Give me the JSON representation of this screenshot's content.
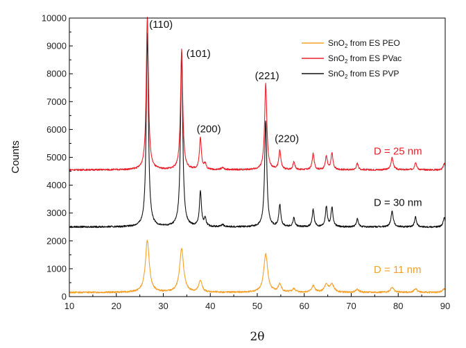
{
  "chart_data": {
    "type": "line",
    "xlabel": "2θ",
    "ylabel": "Counts",
    "xlim": [
      10,
      90
    ],
    "ylim": [
      0,
      10000
    ],
    "x_ticks": [
      "10",
      "20",
      "30",
      "40",
      "50",
      "60",
      "70",
      "80",
      "90"
    ],
    "y_ticks": [
      "0",
      "1000",
      "2000",
      "3000",
      "4000",
      "5000",
      "6000",
      "7000",
      "8000",
      "9000",
      "10000"
    ],
    "grid": false,
    "legend_position": "top-right",
    "series": [
      {
        "name": "SnO2 from ES PEO",
        "legend_main": "SnO",
        "legend_sub": "2",
        "legend_rest": " from ES PEO",
        "color": "#f5a02a",
        "baseline": 150,
        "peaks": [
          [
            26.6,
            1850,
            0.5
          ],
          [
            33.9,
            1570,
            0.5
          ],
          [
            37.9,
            420,
            0.4
          ],
          [
            51.8,
            1380,
            0.5
          ],
          [
            54.8,
            280,
            0.4
          ],
          [
            57.8,
            120,
            0.4
          ],
          [
            61.9,
            230,
            0.4
          ],
          [
            64.7,
            260,
            0.5
          ],
          [
            65.9,
            270,
            0.5
          ],
          [
            71.3,
            110,
            0.4
          ],
          [
            78.7,
            190,
            0.4
          ],
          [
            83.7,
            130,
            0.4
          ],
          [
            89.8,
            130,
            0.4
          ]
        ],
        "size_label": "D = 11 nm"
      },
      {
        "name": "SnO2 from ES PVac",
        "legend_main": "SnO",
        "legend_sub": "2",
        "legend_rest": " from ES PVac",
        "color": "#e8202a",
        "baseline": 4550,
        "peaks": [
          [
            26.6,
            5500,
            0.28
          ],
          [
            33.9,
            4300,
            0.28
          ],
          [
            37.9,
            1130,
            0.25
          ],
          [
            38.9,
            200,
            0.25
          ],
          [
            42.6,
            80,
            0.3
          ],
          [
            51.8,
            3080,
            0.28
          ],
          [
            54.8,
            700,
            0.25
          ],
          [
            57.8,
            280,
            0.25
          ],
          [
            61.9,
            580,
            0.25
          ],
          [
            64.7,
            480,
            0.25
          ],
          [
            65.9,
            600,
            0.25
          ],
          [
            71.3,
            230,
            0.25
          ],
          [
            78.7,
            430,
            0.3
          ],
          [
            83.7,
            280,
            0.25
          ],
          [
            89.8,
            230,
            0.25
          ]
        ],
        "size_label": "D = 25 nm"
      },
      {
        "name": "SnO2 from ES PVP",
        "legend_main": "SnO",
        "legend_sub": "2",
        "legend_rest": " from ES PVP",
        "color": "#111111",
        "baseline": 2500,
        "peaks": [
          [
            26.6,
            6950,
            0.28
          ],
          [
            33.9,
            6300,
            0.28
          ],
          [
            37.9,
            1270,
            0.25
          ],
          [
            38.9,
            280,
            0.25
          ],
          [
            42.6,
            80,
            0.3
          ],
          [
            51.8,
            3800,
            0.28
          ],
          [
            54.8,
            780,
            0.25
          ],
          [
            57.8,
            320,
            0.25
          ],
          [
            61.9,
            620,
            0.25
          ],
          [
            64.7,
            720,
            0.25
          ],
          [
            65.9,
            700,
            0.25
          ],
          [
            71.3,
            280,
            0.25
          ],
          [
            78.7,
            560,
            0.3
          ],
          [
            83.7,
            350,
            0.25
          ],
          [
            89.8,
            350,
            0.25
          ]
        ],
        "size_label": "D = 30 nm"
      }
    ],
    "annotations": [
      {
        "text": "(110)",
        "x": 27.0,
        "y": 9650
      },
      {
        "text": "(101)",
        "x": 34.9,
        "y": 8600
      },
      {
        "text": "(200)",
        "x": 37.1,
        "y": 5900
      },
      {
        "text": "(221)",
        "x": 49.5,
        "y": 7800
      },
      {
        "text": "(220)",
        "x": 53.7,
        "y": 5550
      }
    ],
    "size_label_positions": [
      {
        "series": 1,
        "x": 74.8,
        "y": 5100
      },
      {
        "series": 2,
        "x": 74.8,
        "y": 3250
      },
      {
        "series": 0,
        "x": 74.8,
        "y": 850
      }
    ]
  }
}
